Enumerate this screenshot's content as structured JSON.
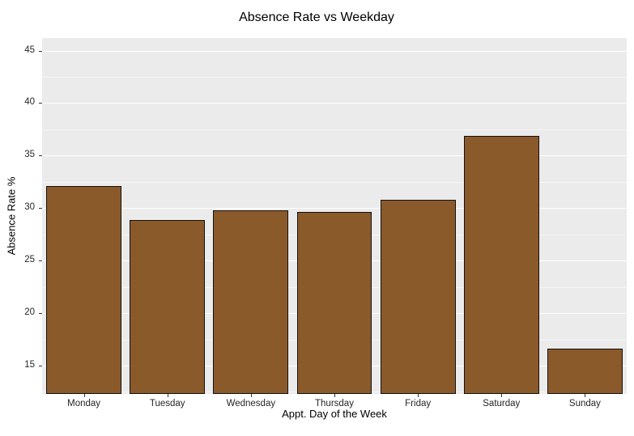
{
  "title": "Absence Rate vs Weekday",
  "chart_data": {
    "type": "bar",
    "title": "Absence Rate vs Weekday",
    "xlabel": "Appt. Day of the Week",
    "ylabel": "Absence Rate %",
    "categories": [
      "Monday",
      "Tuesday",
      "Wednesday",
      "Thursday",
      "Friday",
      "Saturday",
      "Sunday"
    ],
    "values": [
      32.1,
      28.9,
      29.8,
      29.6,
      30.8,
      36.9,
      16.6
    ],
    "ylim": [
      12.3,
      46.2
    ],
    "yticks": [
      15,
      20,
      25,
      30,
      35,
      40,
      45
    ],
    "minor_tick_step": 2.5,
    "grid": "on",
    "legend": "none",
    "bar_width_fraction": 0.9,
    "bar_color": "#8B5A2B",
    "bar_edge_color": "#111111",
    "panel_color": "#EBEBEB",
    "gridline_color": "#FFFFFF"
  }
}
